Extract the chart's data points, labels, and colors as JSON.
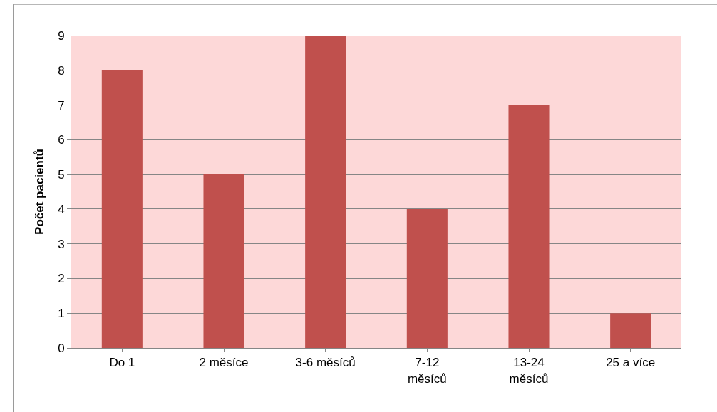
{
  "chart_data": {
    "type": "bar",
    "ylabel": "Počet pacientů",
    "categories": [
      "Do 1",
      "2 měsíce",
      "3-6 měsíců",
      "7-12 měsíců",
      "13-24 měsíců",
      "25 a více"
    ],
    "values": [
      8,
      5,
      9,
      4,
      7,
      1
    ],
    "color": "#c0504d",
    "ylim": [
      0,
      9
    ],
    "yticks": [
      0,
      1,
      2,
      3,
      4,
      5,
      6,
      7,
      8,
      9
    ],
    "grid": "y"
  }
}
